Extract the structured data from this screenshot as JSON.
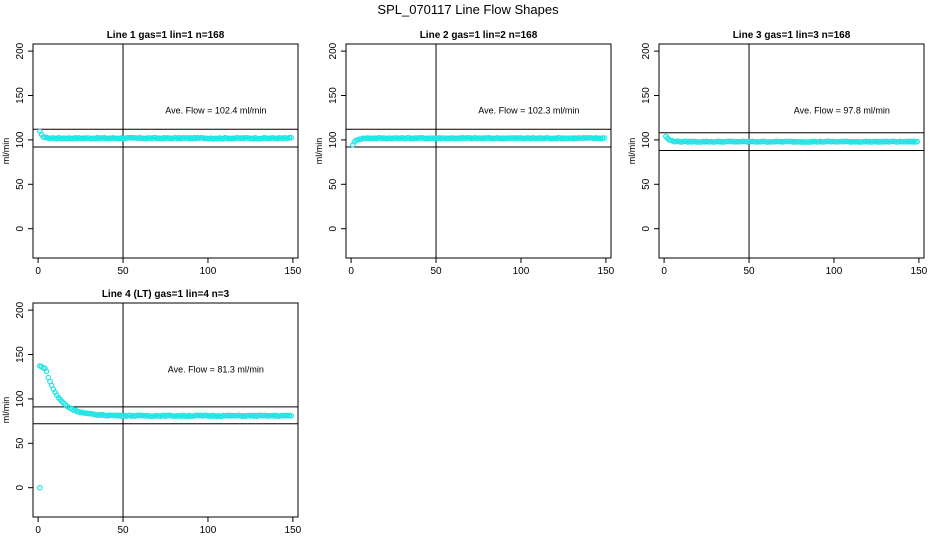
{
  "title": "SPL_070117  Line Flow Shapes",
  "chart_data": [
    {
      "type": "scatter",
      "title": "Line 1 gas=1 lin=1 n=168",
      "ylabel": "ml/min",
      "xlim": [
        -3,
        153
      ],
      "ylim": [
        -33,
        208
      ],
      "xticks": [
        0,
        50,
        100,
        150
      ],
      "yticks": [
        0,
        50,
        100,
        150,
        200
      ],
      "annotation": "Ave. Flow =  102.4  ml/min",
      "hlines": [
        112,
        92
      ],
      "vline": 50,
      "shape": {
        "start": 116,
        "steady": 102,
        "tau": 1.5,
        "noise": 0.6
      }
    },
    {
      "type": "scatter",
      "title": "Line 2 gas=1 lin=2 n=168",
      "ylabel": "ml/min",
      "xlim": [
        -3,
        153
      ],
      "ylim": [
        -33,
        208
      ],
      "xticks": [
        0,
        50,
        100,
        150
      ],
      "yticks": [
        0,
        50,
        100,
        150,
        200
      ],
      "annotation": "Ave. Flow =  102.3  ml/min",
      "hlines": [
        112,
        92
      ],
      "vline": 50,
      "shape": {
        "start": 90,
        "steady": 102,
        "tau": 2,
        "noise": 0.5
      }
    },
    {
      "type": "scatter",
      "title": "Line 3 gas=1 lin=3 n=168",
      "ylabel": "ml/min",
      "xlim": [
        -3,
        153
      ],
      "ylim": [
        -33,
        208
      ],
      "xticks": [
        0,
        50,
        100,
        150
      ],
      "yticks": [
        0,
        50,
        100,
        150,
        200
      ],
      "annotation": "Ave. Flow =  97.8  ml/min",
      "hlines": [
        108,
        88
      ],
      "vline": 50,
      "shape": {
        "start": 108,
        "steady": 98,
        "tau": 2,
        "noise": 0.5
      }
    },
    {
      "type": "scatter",
      "title": "Line 4 (LT) gas=1 lin=4 n=3",
      "ylabel": "ml/min",
      "xlim": [
        -3,
        153
      ],
      "ylim": [
        -33,
        208
      ],
      "xticks": [
        0,
        50,
        100,
        150
      ],
      "yticks": [
        0,
        50,
        100,
        150,
        200
      ],
      "annotation": "Ave. Flow =  81.3  ml/min",
      "hlines": [
        91,
        72
      ],
      "vline": 50,
      "shape": {
        "start": 137,
        "steady": 81,
        "tau": 8,
        "delay": 4,
        "noise": 0.6
      },
      "outliers": [
        {
          "x": 1,
          "y": 0
        }
      ]
    }
  ],
  "colors": {
    "points": "#22e5e5",
    "axis": "#000000"
  }
}
